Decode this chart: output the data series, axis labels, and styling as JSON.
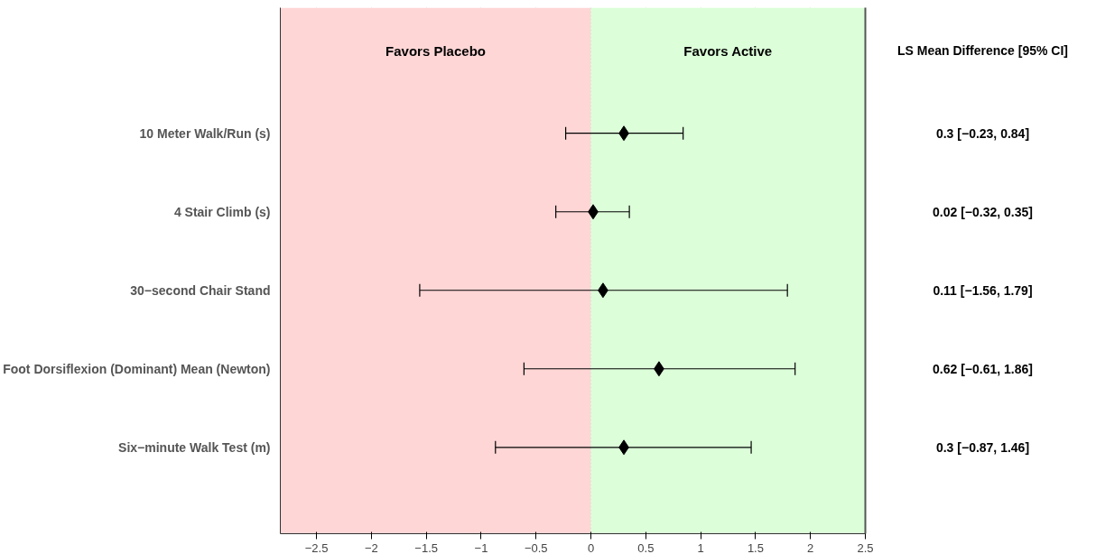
{
  "chart_data": {
    "type": "scatter",
    "orientation": "horizontal",
    "marker": "diamond",
    "grid": "x",
    "categories": [
      "10 Meter Walk/Run (s)",
      "4 Stair Climb (s)",
      "30−second Chair Stand",
      "Foot Dorsiflexion (Dominant) Mean (Newton)",
      "Six−minute Walk Test (m)"
    ],
    "series": [
      {
        "color": "#000000",
        "values": [
          0.3,
          0.02,
          0.11,
          0.62,
          0.3
        ],
        "errors": [
          [
            -0.23,
            0.84
          ],
          [
            -0.32,
            0.35
          ],
          [
            -1.56,
            1.79
          ],
          [
            -0.61,
            1.86
          ],
          [
            -0.87,
            1.46
          ]
        ],
        "value_labels": [
          "0.3 [−0.23, 0.84]",
          "0.02 [−0.32, 0.35]",
          "0.11 [−1.56, 1.79]",
          "0.62 [−0.61, 1.86]",
          "0.3 [−0.87, 1.46]"
        ]
      }
    ],
    "xlim": [
      -2.83,
      2.5
    ],
    "xticks": [
      -2.5,
      -2,
      -1.5,
      -1,
      -0.5,
      0,
      0.5,
      1,
      1.5,
      2,
      2.5
    ],
    "bands": [
      {
        "axis": "x",
        "from": -2.83,
        "to": 0,
        "label": "Favors Placebo",
        "color": "#ffd6d6"
      },
      {
        "axis": "x",
        "from": 0,
        "to": 2.5,
        "label": "Favors Active",
        "color": "#dcffd9"
      }
    ],
    "annotations": [
      "LS Mean Difference [95% CI]"
    ]
  }
}
